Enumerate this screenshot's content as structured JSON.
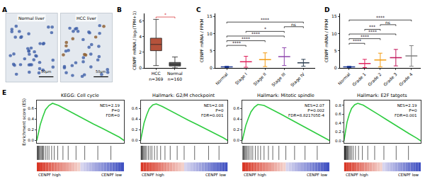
{
  "chart_data": [
    {
      "type": "image_pair",
      "panel": "A",
      "images": [
        {
          "label": "Normal liver",
          "scale_bar": "50μm"
        },
        {
          "label": "HCC liver",
          "scale_bar": "50μm"
        }
      ]
    },
    {
      "type": "box",
      "panel": "B",
      "categories": [
        "HCC",
        "Normal"
      ],
      "n_labels": [
        "n=369",
        "n=160"
      ],
      "boxes": [
        {
          "q1": 2.2,
          "median": 3.0,
          "q3": 3.8,
          "lowerfence": 0.3,
          "upperfence": 6.2
        },
        {
          "q1": 0.25,
          "median": 0.45,
          "q3": 0.7,
          "lowerfence": 0.0,
          "upperfence": 1.4
        }
      ],
      "colors": [
        "#b5523b",
        "#555555"
      ],
      "y_label": "CENPF mRNA / log₂(TPM+1)",
      "ylim": [
        0,
        7
      ],
      "yticks": [
        0,
        2,
        4,
        6
      ],
      "brackets": [
        {
          "from": "HCC",
          "to": "Normal",
          "label": "*",
          "color": "#d62728"
        }
      ]
    },
    {
      "type": "scatter",
      "panel": "C",
      "categories": [
        "Normal",
        "Stage I",
        "Stage II",
        "Stage III",
        "Stage IV"
      ],
      "values": [
        0.3,
        1.8,
        2.4,
        3.3,
        1.5
      ],
      "sd": [
        0.2,
        1.6,
        2.0,
        2.6,
        1.0
      ],
      "colors": [
        "#1f3a93",
        "#e0245e",
        "#f39c12",
        "#8e44ad",
        "#2c3e50"
      ],
      "y_label": "CENPF mRNA / FPKM",
      "ylim": [
        0,
        16
      ],
      "yticks": [
        0,
        5,
        10,
        15
      ],
      "brackets": [
        {
          "from": "Normal",
          "to": "Stage I",
          "label": "****"
        },
        {
          "from": "Normal",
          "to": "Stage II",
          "label": "****"
        },
        {
          "from": "Normal",
          "to": "Stage III",
          "label": "****"
        },
        {
          "from": "Stage I",
          "to": "Stage III",
          "label": "*"
        },
        {
          "from": "Stage III",
          "to": "Stage IV",
          "label": "ns"
        },
        {
          "from": "Normal",
          "to": "Stage IV",
          "label": "****"
        }
      ]
    },
    {
      "type": "scatter",
      "panel": "D",
      "categories": [
        "Normal",
        "Grade 1",
        "Grade 2",
        "Grade 3",
        "Grade 4"
      ],
      "values": [
        0.3,
        1.3,
        2.3,
        3.0,
        3.5
      ],
      "sd": [
        0.2,
        1.2,
        2.0,
        2.4,
        3.0
      ],
      "colors": [
        "#1f3a93",
        "#e0245e",
        "#f39c12",
        "#c2185b",
        "#7f7f7f"
      ],
      "y_label": "CENPF mRNA / FPKM",
      "ylim": [
        0,
        16
      ],
      "yticks": [
        0,
        5,
        10,
        15
      ],
      "brackets": [
        {
          "from": "Normal",
          "to": "Grade 1",
          "label": "****"
        },
        {
          "from": "Normal",
          "to": "Grade 2",
          "label": "****"
        },
        {
          "from": "Normal",
          "to": "Grade 3",
          "label": "****"
        },
        {
          "from": "Grade 1",
          "to": "Grade 2",
          "label": "***"
        },
        {
          "from": "Grade 2",
          "to": "Grade 3",
          "label": "ns"
        },
        {
          "from": "Normal",
          "to": "Grade 4",
          "label": "****"
        }
      ]
    },
    {
      "type": "line",
      "panel": "E",
      "title": "KEGG: Cell cycle",
      "y_label": "Enrichment score (ES)",
      "color": "#2ecc40",
      "tick_labels": "y",
      "x": [
        0,
        0.02,
        0.04,
        0.07,
        0.1,
        0.14,
        0.18,
        0.25,
        0.35,
        0.45,
        0.55,
        0.65,
        0.75,
        0.85,
        0.95,
        1
      ],
      "values": [
        0,
        0.15,
        0.3,
        0.45,
        0.58,
        0.66,
        0.7,
        0.66,
        0.57,
        0.48,
        0.4,
        0.31,
        0.23,
        0.15,
        0.06,
        0
      ],
      "hits": [
        0.005,
        0.01,
        0.015,
        0.02,
        0.03,
        0.04,
        0.05,
        0.06,
        0.07,
        0.08,
        0.1,
        0.12,
        0.14,
        0.17,
        0.2,
        0.24,
        0.3,
        0.36,
        0.45,
        0.55,
        0.7,
        0.85
      ],
      "stats": [
        "NES=2.19",
        "P=0",
        "FDR=0"
      ],
      "xlim": [
        0,
        1
      ],
      "ylim": [
        -0.05,
        0.75
      ],
      "yticks": [
        {
          "value": 0,
          "label": "0.0"
        },
        0.2,
        0.4,
        0.6
      ],
      "gradient_labels": [
        "CENPF high",
        "CENPF low"
      ]
    },
    {
      "type": "line",
      "title": "Hallmark: G2/M checkpoint",
      "color": "#2ecc40",
      "tick_labels": "y",
      "x": [
        0,
        0.02,
        0.04,
        0.07,
        0.1,
        0.14,
        0.18,
        0.25,
        0.35,
        0.45,
        0.55,
        0.65,
        0.75,
        0.85,
        0.95,
        1
      ],
      "values": [
        0,
        0.18,
        0.33,
        0.48,
        0.6,
        0.67,
        0.69,
        0.64,
        0.55,
        0.46,
        0.38,
        0.3,
        0.22,
        0.14,
        0.05,
        0
      ],
      "hits": [
        0.004,
        0.008,
        0.012,
        0.018,
        0.025,
        0.035,
        0.045,
        0.055,
        0.07,
        0.09,
        0.11,
        0.13,
        0.16,
        0.19,
        0.23,
        0.28,
        0.34,
        0.42,
        0.5,
        0.62,
        0.78,
        0.9
      ],
      "stats": [
        "NES=2.08",
        "P=0",
        "FDR=0.001"
      ],
      "xlim": [
        0,
        1
      ],
      "ylim": [
        -0.05,
        0.75
      ],
      "yticks": [
        {
          "value": 0,
          "label": "0.0"
        },
        0.2,
        0.4,
        0.6
      ],
      "gradient_labels": [
        "CENPF high",
        "CENPF low"
      ]
    },
    {
      "type": "line",
      "title": "Hallmark: Mitotic spindle",
      "color": "#2ecc40",
      "tick_labels": "y",
      "x": [
        0,
        0.02,
        0.04,
        0.07,
        0.1,
        0.14,
        0.18,
        0.25,
        0.35,
        0.45,
        0.55,
        0.65,
        0.75,
        0.85,
        0.95,
        1
      ],
      "values": [
        0,
        0.14,
        0.28,
        0.42,
        0.54,
        0.63,
        0.68,
        0.66,
        0.58,
        0.49,
        0.4,
        0.31,
        0.22,
        0.14,
        0.05,
        0
      ],
      "hits": [
        0.006,
        0.012,
        0.02,
        0.03,
        0.04,
        0.05,
        0.065,
        0.08,
        0.1,
        0.12,
        0.15,
        0.18,
        0.21,
        0.25,
        0.3,
        0.35,
        0.42,
        0.5,
        0.6,
        0.72,
        0.86
      ],
      "stats": [
        "NES=2.07",
        "P=0.002",
        "FDR=8.821705E-4"
      ],
      "xlim": [
        0,
        1
      ],
      "ylim": [
        -0.05,
        0.75
      ],
      "yticks": [
        {
          "value": 0,
          "label": "0.0"
        },
        0.2,
        0.4,
        0.6
      ],
      "gradient_labels": [
        "CENPF high",
        "CENPF low"
      ]
    },
    {
      "type": "line",
      "title": "Hallmark: E2F tatgets",
      "color": "#2ecc40",
      "tick_labels": "y",
      "x": [
        0,
        0.02,
        0.04,
        0.07,
        0.1,
        0.14,
        0.18,
        0.25,
        0.35,
        0.45,
        0.55,
        0.65,
        0.75,
        0.85,
        0.95,
        1
      ],
      "values": [
        0,
        0.22,
        0.42,
        0.6,
        0.73,
        0.81,
        0.84,
        0.8,
        0.7,
        0.59,
        0.48,
        0.37,
        0.26,
        0.16,
        0.06,
        0
      ],
      "hits": [
        0.003,
        0.006,
        0.01,
        0.014,
        0.018,
        0.024,
        0.03,
        0.038,
        0.046,
        0.056,
        0.068,
        0.082,
        0.1,
        0.12,
        0.15,
        0.19,
        0.24,
        0.31,
        0.4,
        0.52,
        0.68,
        0.84
      ],
      "stats": [
        "NES=2.19",
        "P=0",
        "FDR=0.001"
      ],
      "xlim": [
        0,
        1
      ],
      "ylim": [
        -0.05,
        0.9
      ],
      "yticks": [
        {
          "value": 0,
          "label": "0.0"
        },
        0.2,
        0.4,
        0.6,
        0.8
      ],
      "gradient_labels": [
        "CENPF high",
        "CENPF low"
      ]
    }
  ]
}
